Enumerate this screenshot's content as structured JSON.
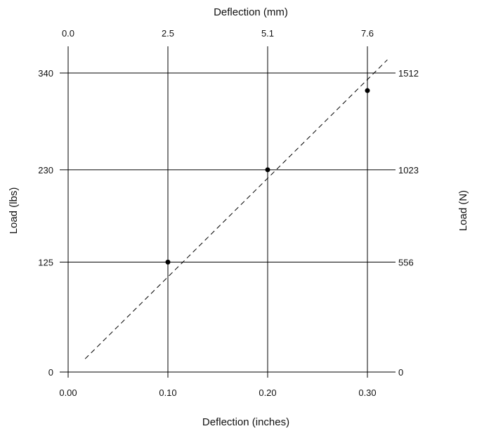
{
  "chart_data": {
    "type": "line",
    "title": "",
    "xlabel": "Deflection (inches)",
    "ylabel": "Load (lbs)",
    "x2label": "Deflection (mm)",
    "y2label": "Load (N)",
    "xlim": [
      0.0,
      0.3
    ],
    "ylim": [
      0,
      340
    ],
    "x_ticks": [
      0.0,
      0.1,
      0.2,
      0.3
    ],
    "x_tick_labels": [
      "0.00",
      "0.10",
      "0.20",
      "0.30"
    ],
    "y_ticks": [
      0,
      125,
      230,
      340
    ],
    "y_tick_labels": [
      "0",
      "125",
      "230",
      "340"
    ],
    "x2_tick_labels": [
      "0.0",
      "2.5",
      "5.1",
      "7.6"
    ],
    "y2_tick_labels": [
      "0",
      "556",
      "1023",
      "1512"
    ],
    "grid": true,
    "series": [
      {
        "points": [
          {
            "x": 0.1,
            "y": 125
          },
          {
            "x": 0.2,
            "y": 230
          },
          {
            "x": 0.3,
            "y": 320
          }
        ],
        "trendline": {
          "style": "dashed",
          "from": {
            "x": 0.017,
            "y": 15
          },
          "to": {
            "x": 0.32,
            "y": 355
          }
        },
        "color": "#000000"
      }
    ]
  }
}
